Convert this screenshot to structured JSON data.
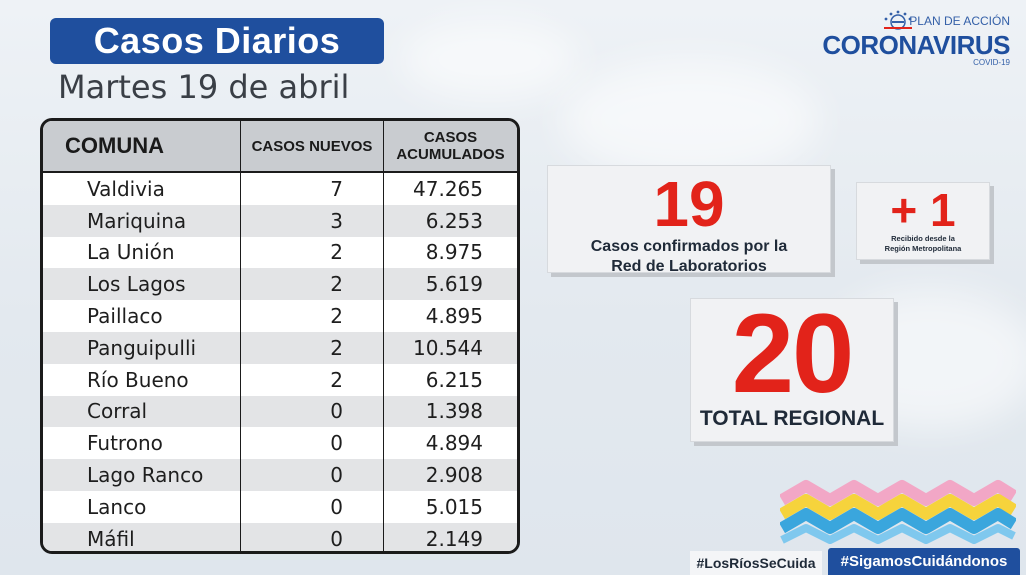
{
  "header": {
    "title": "Casos Diarios",
    "date": "Martes 19 de abril"
  },
  "logo": {
    "plan": "PLAN DE ACCIÓN",
    "name": "CORONAVIRUS",
    "sub": "COVID-19"
  },
  "table": {
    "headers": [
      "COMUNA",
      "CASOS NUEVOS",
      "CASOS ACUMULADOS"
    ],
    "rows": [
      {
        "comuna": "Valdivia",
        "nuevos": "7",
        "acumulados": "47.265"
      },
      {
        "comuna": "Mariquina",
        "nuevos": "3",
        "acumulados": "6.253"
      },
      {
        "comuna": "La Unión",
        "nuevos": "2",
        "acumulados": "8.975"
      },
      {
        "comuna": "Los Lagos",
        "nuevos": "2",
        "acumulados": "5.619"
      },
      {
        "comuna": "Paillaco",
        "nuevos": "2",
        "acumulados": "4.895"
      },
      {
        "comuna": "Panguipulli",
        "nuevos": "2",
        "acumulados": "10.544"
      },
      {
        "comuna": "Río Bueno",
        "nuevos": "2",
        "acumulados": "6.215"
      },
      {
        "comuna": "Corral",
        "nuevos": "0",
        "acumulados": "1.398"
      },
      {
        "comuna": "Futrono",
        "nuevos": "0",
        "acumulados": "4.894"
      },
      {
        "comuna": "Lago Ranco",
        "nuevos": "0",
        "acumulados": "2.908"
      },
      {
        "comuna": "Lanco",
        "nuevos": "0",
        "acumulados": "5.015"
      },
      {
        "comuna": "Máfil",
        "nuevos": "0",
        "acumulados": "2.149"
      }
    ]
  },
  "cards": {
    "laboratorios": {
      "value": "19",
      "label_line1": "Casos confirmados  por la",
      "label_line2": "Red de Laboratorios"
    },
    "metropolitana": {
      "value": "+ 1",
      "label_line1": "Recibido desde la",
      "label_line2": "Región Metropolitana"
    },
    "total": {
      "value": "20",
      "label": "TOTAL REGIONAL"
    }
  },
  "hashtags": {
    "tag1": "#LosRíosSeCuida",
    "tag2": "#SigamosCuidándonos"
  },
  "colors": {
    "brand_blue": "#1f4f9e",
    "accent_red": "#e2231a"
  },
  "icons": {
    "emblem": "government-emblem-icon",
    "waves": "colored-waves-icon"
  }
}
